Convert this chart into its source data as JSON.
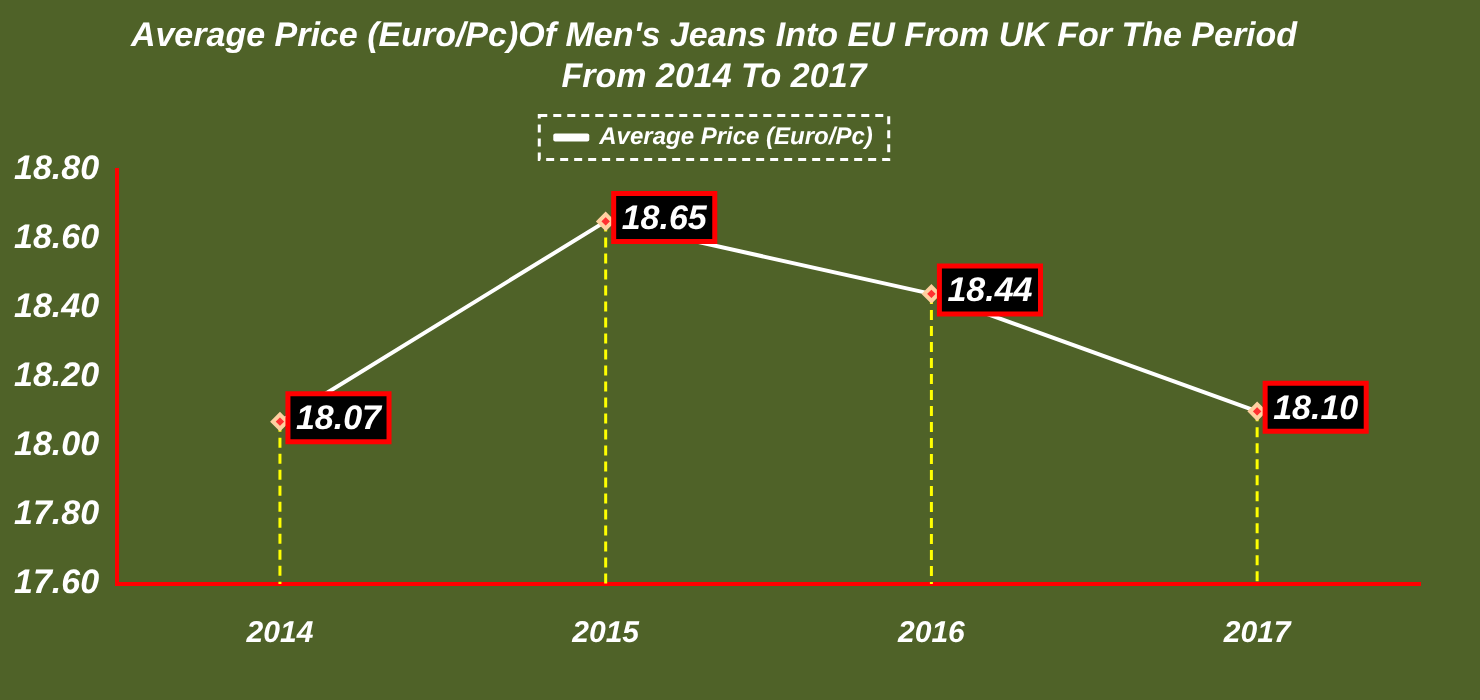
{
  "chart_data": {
    "type": "line",
    "title": "Average Price (Euro/Pc)Of Men's Jeans Into EU From UK For The Period From 2014 To 2017",
    "categories": [
      "2014",
      "2015",
      "2016",
      "2017"
    ],
    "series": [
      {
        "name": "Average Price (Euro/Pc)",
        "color": "#ffffff",
        "values": [
          18.07,
          18.65,
          18.44,
          18.1
        ],
        "errors": [
          [
            17.6,
            18.07
          ],
          [
            17.6,
            18.65
          ],
          [
            17.6,
            18.44
          ],
          [
            17.6,
            18.1
          ]
        ],
        "value_labels": [
          "18.07",
          "18.65",
          "18.44",
          "18.10"
        ]
      }
    ],
    "ylim": [
      17.6,
      18.8
    ],
    "yticks": [
      {
        "value": 17.6,
        "label": "17.60"
      },
      {
        "value": 17.8,
        "label": "17.80"
      },
      {
        "value": 18.0,
        "label": "18.00"
      },
      {
        "value": 18.2,
        "label": "18.20"
      },
      {
        "value": 18.4,
        "label": "18.40"
      },
      {
        "value": 18.6,
        "label": "18.60"
      },
      {
        "value": 18.8,
        "label": "18.80"
      }
    ],
    "grid": false,
    "legend": "top",
    "marker": "diamond",
    "line_style": "solid"
  }
}
